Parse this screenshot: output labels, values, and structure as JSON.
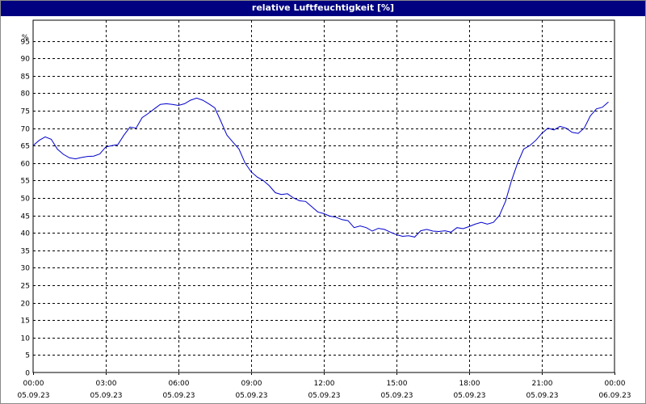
{
  "window": {
    "title": "relative Luftfeuchtigkeit [%]"
  },
  "chart_data": {
    "type": "line",
    "title": "relative Luftfeuchtigkeit [%]",
    "ylabel": "%",
    "xlabel": "",
    "ylim": [
      0,
      100
    ],
    "y_ticks": [
      0,
      5,
      10,
      15,
      20,
      25,
      30,
      35,
      40,
      45,
      50,
      55,
      60,
      65,
      70,
      75,
      80,
      85,
      90,
      95
    ],
    "xlim": [
      0,
      24
    ],
    "x_ticks": [
      {
        "time": "00:00",
        "date": "05.09.23",
        "hour": 0
      },
      {
        "time": "03:00",
        "date": "05.09.23",
        "hour": 3
      },
      {
        "time": "06:00",
        "date": "05.09.23",
        "hour": 6
      },
      {
        "time": "09:00",
        "date": "05.09.23",
        "hour": 9
      },
      {
        "time": "12:00",
        "date": "05.09.23",
        "hour": 12
      },
      {
        "time": "15:00",
        "date": "05.09.23",
        "hour": 15
      },
      {
        "time": "18:00",
        "date": "05.09.23",
        "hour": 18
      },
      {
        "time": "21:00",
        "date": "05.09.23",
        "hour": 21
      },
      {
        "time": "00:00",
        "date": "06.09.23",
        "hour": 24
      }
    ],
    "grid": true,
    "line_color": "#0000cc",
    "series": [
      {
        "x": [
          0,
          0.25,
          0.5,
          0.75,
          1.0,
          1.25,
          1.5,
          1.75,
          2.0,
          2.25,
          2.5,
          2.75,
          3.0,
          3.25,
          3.5,
          3.75,
          4.0,
          4.25,
          4.5,
          4.75,
          5.0,
          5.25,
          5.5,
          5.75,
          6.0,
          6.25,
          6.5,
          6.75,
          7.0,
          7.25,
          7.5,
          7.75,
          8.0,
          8.25,
          8.5,
          8.75,
          9.0,
          9.25,
          9.5,
          9.75,
          10.0,
          10.25,
          10.5,
          10.75,
          11.0,
          11.25,
          11.5,
          11.75,
          12.0,
          12.25,
          12.5,
          12.75,
          13.0,
          13.25,
          13.5,
          13.75,
          14.0,
          14.25,
          14.5,
          14.75,
          15.0,
          15.25,
          15.5,
          15.75,
          16.0,
          16.25,
          16.5,
          16.75,
          17.0,
          17.25,
          17.5,
          17.75,
          18.0,
          18.25,
          18.5,
          18.75,
          19.0,
          19.25,
          19.5,
          19.75,
          20.0,
          20.25,
          20.5,
          20.75,
          21.0,
          21.25,
          21.5,
          21.75,
          22.0,
          22.25,
          22.5,
          22.75,
          23.0,
          23.25,
          23.5,
          23.75
        ],
        "values": [
          65.0,
          66.5,
          67.5,
          66.8,
          64.0,
          62.5,
          61.5,
          61.2,
          61.6,
          61.9,
          62.0,
          62.6,
          64.6,
          65.0,
          65.3,
          68.0,
          70.3,
          70.0,
          73.0,
          74.2,
          75.5,
          76.8,
          77.0,
          76.8,
          76.5,
          77.0,
          78.0,
          78.6,
          78.0,
          77.0,
          75.8,
          72.0,
          68.0,
          66.0,
          64.0,
          60.0,
          57.5,
          56.0,
          55.0,
          53.5,
          51.5,
          51.0,
          51.2,
          50.0,
          49.2,
          49.0,
          47.5,
          46.0,
          45.5,
          44.8,
          44.5,
          43.8,
          43.5,
          41.5,
          42.0,
          41.5,
          40.5,
          41.3,
          41.0,
          40.2,
          39.5,
          39.0,
          39.2,
          38.8,
          40.6,
          41.0,
          40.5,
          40.4,
          40.6,
          40.2,
          41.5,
          41.2,
          41.8,
          42.5,
          43.0,
          42.5,
          43.0,
          45.0,
          49.0,
          55.0,
          60.0,
          64.0,
          65.0,
          66.5,
          68.5,
          70.0,
          69.5,
          70.5,
          70.0,
          68.8,
          68.5,
          70.0,
          73.5,
          75.5,
          76.0,
          77.5
        ]
      }
    ]
  }
}
